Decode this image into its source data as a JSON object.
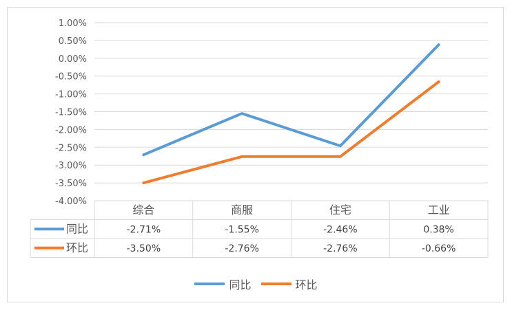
{
  "chart_data": {
    "type": "line",
    "categories": [
      "综合",
      "商服",
      "住宅",
      "工业"
    ],
    "series": [
      {
        "name": "同比",
        "color": "#5b9bd5",
        "values": [
          -2.71,
          -1.55,
          -2.46,
          0.38
        ],
        "labels": [
          "-2.71%",
          "-1.55%",
          "-2.46%",
          "0.38%"
        ]
      },
      {
        "name": "环比",
        "color": "#ed7d31",
        "values": [
          -3.5,
          -2.76,
          -2.76,
          -0.66
        ],
        "labels": [
          "-3.50%",
          "-2.76%",
          "-2.76%",
          "-0.66%"
        ]
      }
    ],
    "ylim": [
      -4.0,
      1.0
    ],
    "yticks": [
      "1.00%",
      "0.50%",
      "0.00%",
      "-0.50%",
      "-1.00%",
      "-1.50%",
      "-2.00%",
      "-2.50%",
      "-3.00%",
      "-3.50%",
      "-4.00%"
    ],
    "grid": true,
    "data_table": true,
    "legend_position": "bottom"
  }
}
